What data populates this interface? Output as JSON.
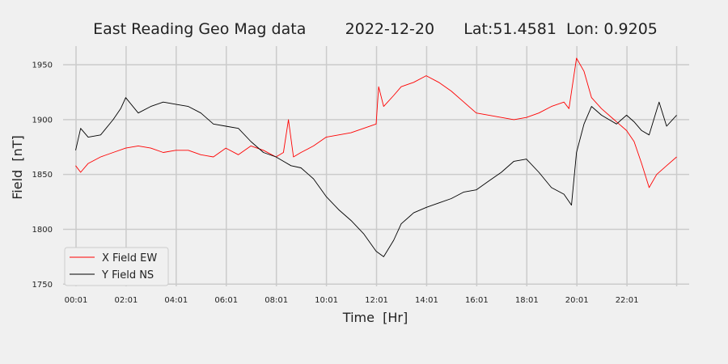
{
  "chart_data": {
    "type": "line",
    "title": "East Reading Geo Mag data        2022-12-20      Lat:51.4581  Lon: 0.9205",
    "xlabel": "Time  [Hr]",
    "ylabel": "Field  [nT]",
    "xlim": [
      -0.5,
      24.5
    ],
    "ylim": [
      1748,
      1967
    ],
    "x_ticks": [
      0.0167,
      2.0167,
      4.0167,
      6.0167,
      8.0167,
      10.0167,
      12.0167,
      14.0167,
      16.0167,
      18.0167,
      20.0167,
      22.0167,
      24.0
    ],
    "x_tick_labels": [
      "00:01",
      "02:01",
      "04:01",
      "06:01",
      "08:01",
      "10:01",
      "12:01",
      "14:01",
      "16:01",
      "18:01",
      "20:01",
      "22:01",
      ""
    ],
    "y_ticks": [
      1750,
      1800,
      1850,
      1900,
      1950
    ],
    "y_tick_labels": [
      "1750",
      "1800",
      "1850",
      "1900",
      "1950"
    ],
    "grid": true,
    "legend_position": "lower-left",
    "background": "#f0f0f0",
    "grid_color": "#cbcbcb",
    "series": [
      {
        "name": "X Field EW",
        "color": "#ff0000",
        "x": [
          0,
          0.2,
          0.5,
          1.0,
          1.5,
          2.0,
          2.5,
          3.0,
          3.5,
          4.0,
          4.5,
          5.0,
          5.5,
          6.0,
          6.5,
          7.0,
          7.5,
          8.0,
          8.3,
          8.5,
          8.7,
          9.0,
          9.5,
          10.0,
          10.5,
          11.0,
          11.5,
          12.0,
          12.1,
          12.3,
          12.7,
          13.0,
          13.5,
          14.0,
          14.5,
          15.0,
          15.5,
          16.0,
          16.5,
          17.0,
          17.5,
          18.0,
          18.5,
          19.0,
          19.5,
          19.7,
          20.0,
          20.3,
          20.6,
          21.0,
          21.5,
          22.0,
          22.3,
          22.6,
          22.9,
          23.2,
          23.6,
          24.0
        ],
        "y": [
          1858,
          1852,
          1860,
          1866,
          1870,
          1874,
          1876,
          1874,
          1870,
          1872,
          1872,
          1868,
          1866,
          1874,
          1868,
          1876,
          1872,
          1866,
          1870,
          1900,
          1866,
          1870,
          1876,
          1884,
          1886,
          1888,
          1892,
          1896,
          1930,
          1912,
          1922,
          1930,
          1934,
          1940,
          1934,
          1926,
          1916,
          1906,
          1904,
          1902,
          1900,
          1902,
          1906,
          1912,
          1916,
          1910,
          1956,
          1944,
          1920,
          1910,
          1900,
          1890,
          1880,
          1860,
          1838,
          1850,
          1858,
          1866
        ]
      },
      {
        "name": "Y Field NS",
        "color": "#000000",
        "x": [
          0,
          0.2,
          0.5,
          1.0,
          1.5,
          1.8,
          2.0,
          2.5,
          3.0,
          3.5,
          4.0,
          4.5,
          5.0,
          5.5,
          6.0,
          6.5,
          7.0,
          7.5,
          8.0,
          8.3,
          8.6,
          9.0,
          9.5,
          10.0,
          10.5,
          11.0,
          11.5,
          12.0,
          12.3,
          12.7,
          13.0,
          13.5,
          14.0,
          14.5,
          15.0,
          15.5,
          16.0,
          16.5,
          17.0,
          17.5,
          18.0,
          18.5,
          19.0,
          19.5,
          19.8,
          20.0,
          20.3,
          20.6,
          21.0,
          21.3,
          21.6,
          22.0,
          22.3,
          22.6,
          22.9,
          23.3,
          23.6,
          24.0
        ],
        "y": [
          1872,
          1892,
          1884,
          1886,
          1900,
          1910,
          1920,
          1906,
          1912,
          1916,
          1914,
          1912,
          1906,
          1896,
          1894,
          1892,
          1880,
          1870,
          1866,
          1862,
          1858,
          1856,
          1846,
          1830,
          1818,
          1808,
          1796,
          1780,
          1775,
          1790,
          1805,
          1815,
          1820,
          1824,
          1828,
          1834,
          1836,
          1844,
          1852,
          1862,
          1864,
          1852,
          1838,
          1832,
          1822,
          1870,
          1896,
          1912,
          1904,
          1900,
          1896,
          1904,
          1898,
          1890,
          1886,
          1916,
          1894,
          1904
        ]
      }
    ]
  }
}
